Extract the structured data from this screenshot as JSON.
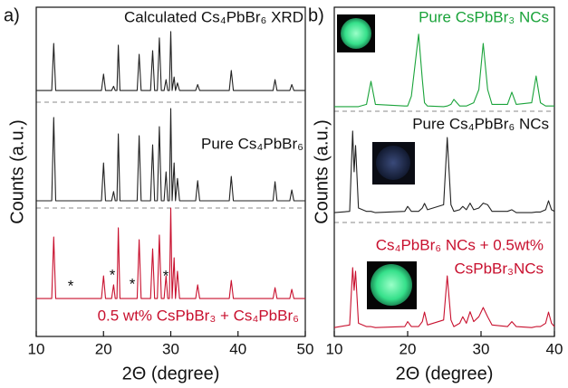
{
  "chart_data": [
    {
      "type": "line",
      "label": "a)",
      "xlabel": "2Θ (degree)",
      "ylabel": "Counts (a.u.)",
      "xlim": [
        10,
        50
      ],
      "xticks": [
        10,
        20,
        30,
        40,
        50
      ],
      "ylim": [
        0,
        100
      ],
      "x": [
        10,
        12.3,
        12.6,
        12.9,
        19.7,
        20.0,
        20.3,
        21.2,
        21.5,
        21.75,
        22.0,
        22.2,
        22.45,
        25.0,
        25.3,
        25.6,
        27.0,
        27.3,
        27.6,
        28.0,
        28.3,
        28.6,
        29.0,
        29.3,
        29.55,
        29.8,
        30.0,
        30.2,
        30.5,
        30.7,
        31.0,
        31.3,
        33.7,
        34.0,
        34.3,
        38.7,
        39.0,
        39.3,
        45.2,
        45.5,
        45.8,
        47.7,
        48.0,
        48.3,
        50
      ],
      "series": [
        {
          "color": "#c8102e",
          "values": [
            11.5,
            11.5,
            30.2,
            11.5,
            11.5,
            18.4,
            11.5,
            11.5,
            15.7,
            11.5,
            11.5,
            33,
            11.5,
            11.5,
            29.4,
            11.5,
            11.5,
            26.6,
            11.5,
            11.5,
            30.8,
            11.5,
            11.5,
            18.4,
            11.5,
            11.5,
            39,
            11.5,
            23.9,
            11.5,
            19.8,
            11.5,
            11.5,
            15.7,
            11.5,
            11.5,
            17,
            11.5,
            11.5,
            14.8,
            11.5,
            11.5,
            14.3,
            11.5,
            11.5
          ]
        },
        {
          "color": "#222222",
          "values": [
            41.2,
            41.2,
            66.5,
            41.2,
            41.2,
            52.7,
            41.2,
            41.2,
            44,
            41.2,
            41.2,
            61.5,
            41.2,
            41.2,
            61,
            41.2,
            41.2,
            58.2,
            41.2,
            41.2,
            63.7,
            41.2,
            41.2,
            50,
            41.2,
            41.2,
            69.2,
            41.2,
            52.7,
            41.2,
            48,
            41.2,
            41.2,
            47.3,
            41.2,
            41.2,
            48.6,
            41.2,
            41.2,
            47,
            41.2,
            41.2,
            44.5,
            41.2,
            41.2
          ]
        },
        {
          "color": "#222222",
          "values": [
            74.7,
            74.7,
            89,
            74.7,
            74.7,
            79.7,
            74.7,
            74.7,
            76,
            74.7,
            74.7,
            88.5,
            74.7,
            74.7,
            85.7,
            74.7,
            74.7,
            86.8,
            74.7,
            74.7,
            90.7,
            74.7,
            74.7,
            78,
            74.7,
            74.7,
            92.6,
            74.7,
            78.8,
            74.7,
            77,
            74.7,
            74.7,
            76.5,
            74.7,
            74.7,
            80.8,
            74.7,
            74.7,
            78,
            74.7,
            74.7,
            76.5,
            74.7,
            74.7
          ]
        }
      ],
      "annotations": [
        {
          "text": "Calculated Cs₄PbBr₆ XRD",
          "color": "#111111"
        },
        {
          "text": "Pure Cs₄PbBr₆",
          "color": "#111111"
        },
        {
          "text": "0.5 wt%  CsPbBr₃ + Cs₄PbBr₆",
          "color": "#c8102e"
        },
        {
          "text": "*",
          "color": "#111111"
        },
        {
          "text": "*",
          "color": "#111111"
        },
        {
          "text": "*",
          "color": "#111111"
        },
        {
          "text": "*",
          "color": "#111111"
        }
      ]
    },
    {
      "type": "line",
      "label": "b)",
      "xlabel": "2Θ (degree)",
      "ylabel": "Counts (a.u.)",
      "xlim": [
        10,
        40
      ],
      "xticks": [
        10,
        20,
        30,
        40
      ],
      "ylim": [
        0,
        100
      ],
      "x": [
        10,
        12.1,
        12.5,
        12.7,
        12.9,
        13.3,
        14.4,
        15.0,
        15.6,
        19.6,
        20.0,
        20.5,
        21.5,
        22.0,
        22.3,
        22.7,
        24.9,
        25.4,
        25.9,
        26.3,
        27.1,
        27.5,
        28.0,
        28.5,
        29.0,
        29.7,
        30.3,
        30.9,
        31.5,
        33.6,
        34.2,
        34.8,
        36.9,
        37.5,
        38.1,
        38.8,
        39.2,
        39.6,
        40
      ],
      "series": [
        {
          "color": "#1aa33a",
          "values": [
            69.8,
            69.8,
            69.8,
            69.8,
            69.8,
            69.8,
            70.5,
            77.5,
            70.5,
            70,
            70,
            73,
            91.8,
            78,
            71,
            70,
            69.8,
            70,
            70.5,
            72,
            70,
            70,
            70,
            70.5,
            71,
            75,
            89,
            75,
            70.5,
            70.5,
            74.2,
            70.5,
            71,
            79.1,
            71,
            70,
            70,
            70,
            70
          ]
        },
        {
          "color": "#222222",
          "values": [
            37.6,
            38,
            62.4,
            50,
            58,
            39,
            38,
            38,
            37.6,
            38,
            39.5,
            38,
            38,
            39,
            40.4,
            38.5,
            40,
            60.4,
            40,
            38,
            38.5,
            39.5,
            38.5,
            40.5,
            38.5,
            39,
            40.5,
            40,
            38,
            38,
            38.5,
            37.6,
            37.6,
            37.8,
            37.8,
            38.5,
            41.2,
            38.5,
            38
          ]
        },
        {
          "color": "#c8102e",
          "values": [
            2.7,
            3.5,
            20.9,
            14,
            19.8,
            4,
            3,
            3,
            2.7,
            3,
            4.5,
            3,
            3,
            4.5,
            7.4,
            3.5,
            5,
            18.4,
            5,
            3,
            4,
            6,
            4,
            7.5,
            4.5,
            6,
            8.8,
            6,
            3.5,
            3,
            4.5,
            3,
            2.7,
            3,
            3,
            4,
            7.4,
            4,
            3
          ]
        }
      ],
      "annotations": [
        {
          "text": "Pure CsPbBr₃ NCs",
          "color": "#1aa33a"
        },
        {
          "text": "Pure Cs₄PbBr₆ NCs",
          "color": "#111111"
        },
        {
          "text": "Cs₄PbBr₆ NCs + 0.5wt%",
          "color": "#c8102e"
        },
        {
          "text": "CsPbBr₃NCs",
          "color": "#c8102e"
        }
      ]
    }
  ]
}
